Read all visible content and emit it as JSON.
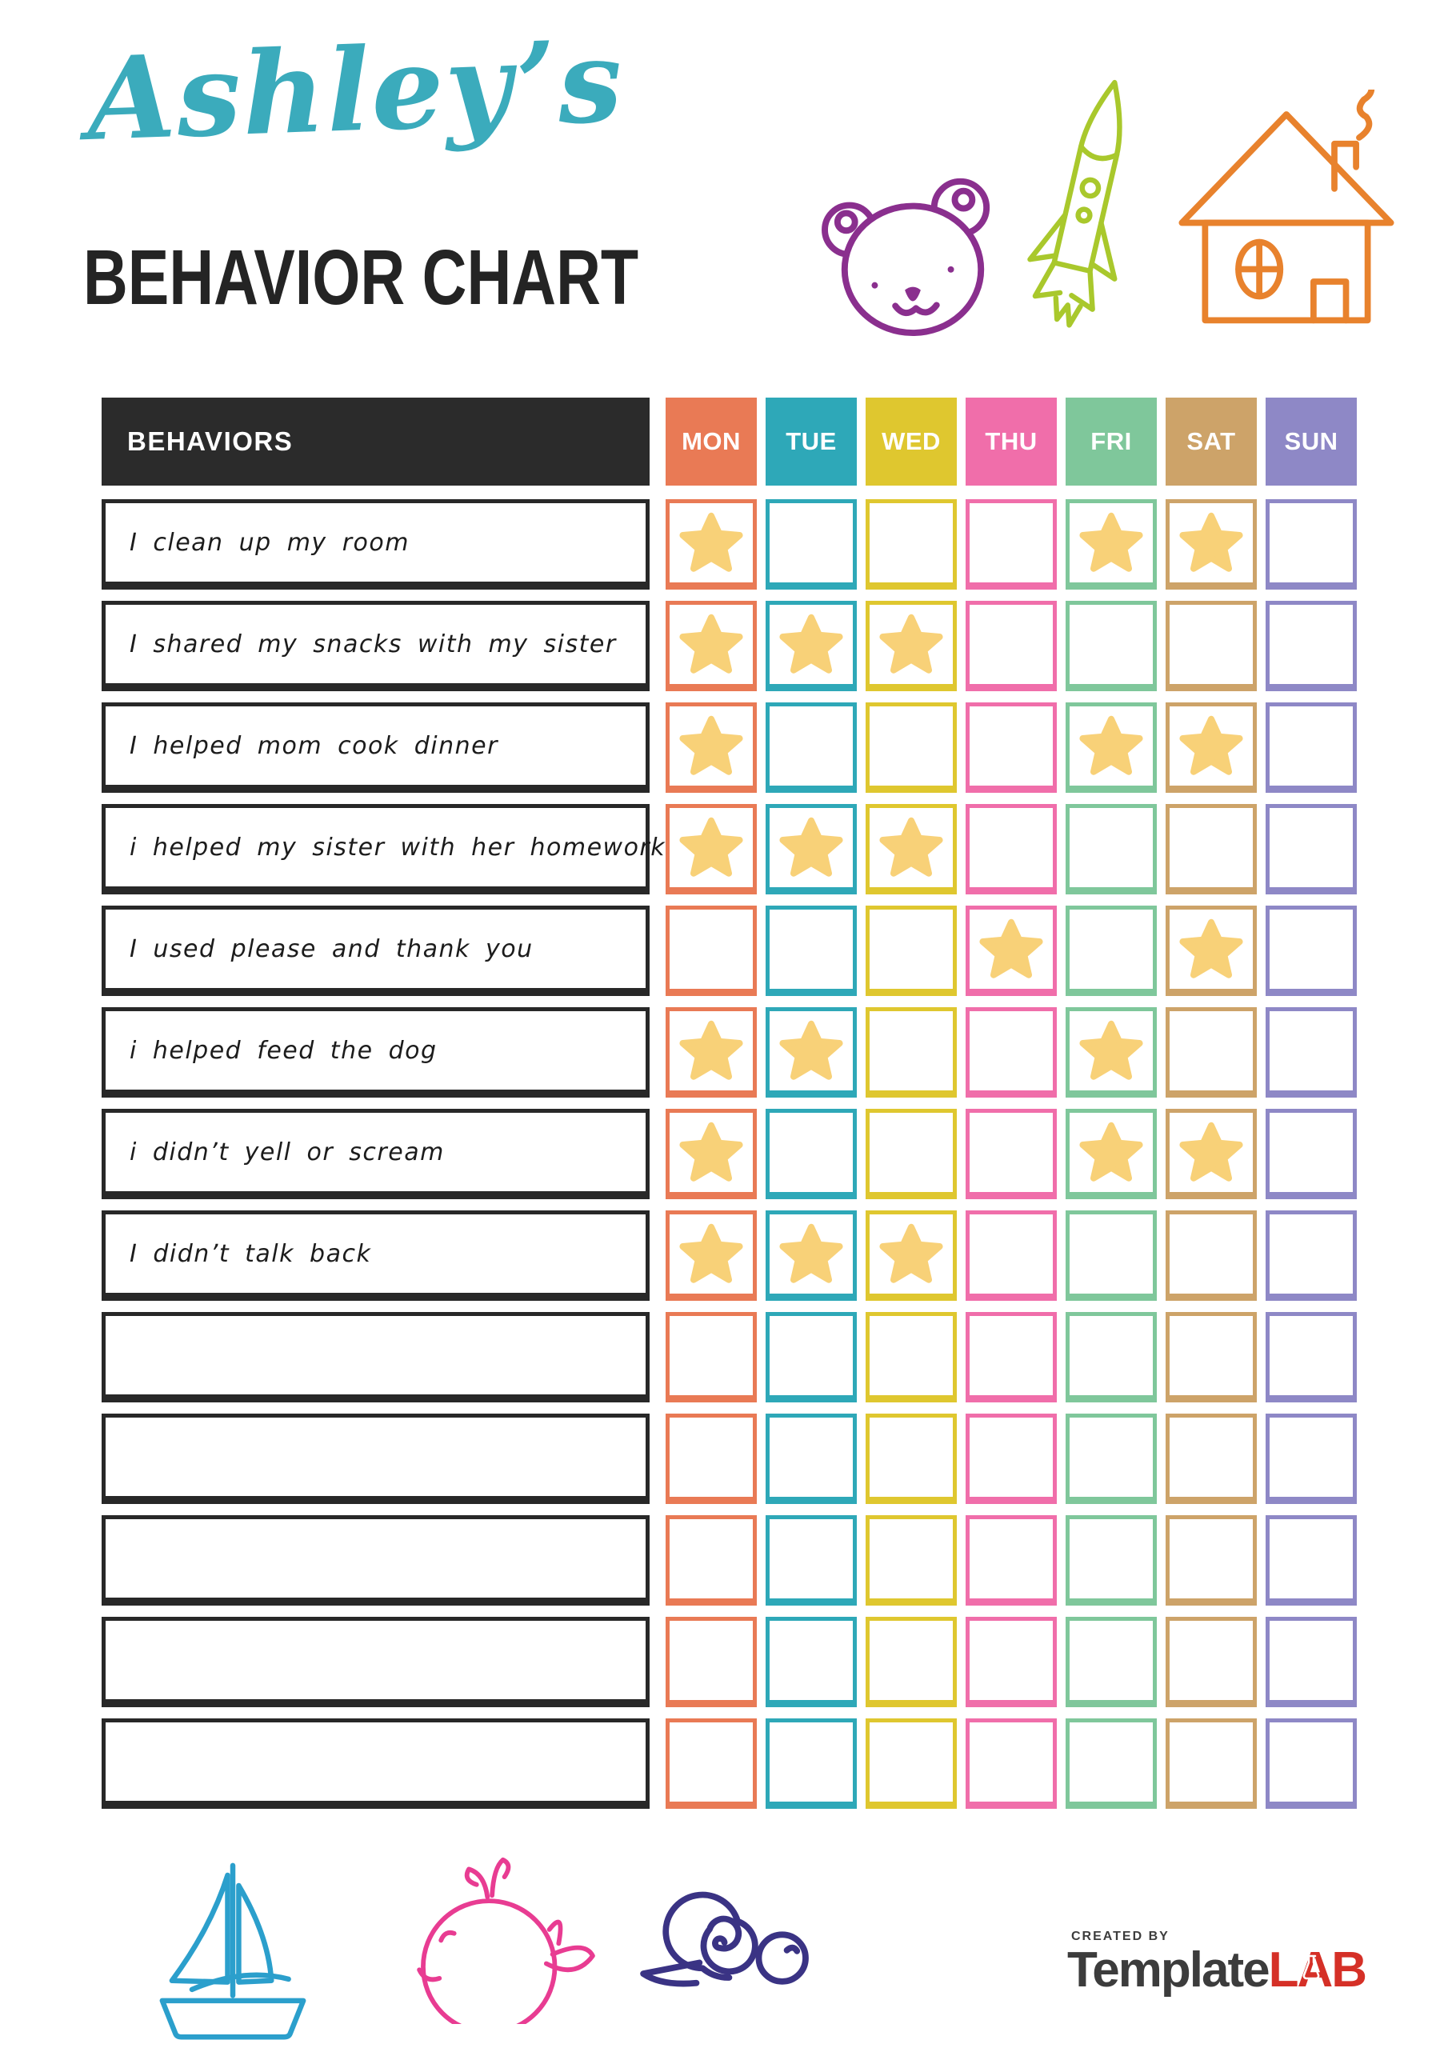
{
  "header": {
    "script_title": "Ashley’s",
    "main_title": "BEHAVIOR CHART"
  },
  "table": {
    "behaviors_header": "BEHAVIORS",
    "header_bg": "#2B2B2B",
    "star_color": "#F8D178",
    "days": [
      {
        "label": "MON",
        "color": "#E97A55"
      },
      {
        "label": "TUE",
        "color": "#2EA8B8"
      },
      {
        "label": "WED",
        "color": "#DFC72F"
      },
      {
        "label": "THU",
        "color": "#F06EAA"
      },
      {
        "label": "FRI",
        "color": "#7FC79B"
      },
      {
        "label": "SAT",
        "color": "#CDA369"
      },
      {
        "label": "SUN",
        "color": "#8E88C6"
      }
    ],
    "rows": [
      {
        "behavior": "I clean up my room",
        "stars": [
          1,
          0,
          0,
          0,
          1,
          1,
          0
        ]
      },
      {
        "behavior": "I shared my snacks with my sister",
        "stars": [
          1,
          1,
          1,
          0,
          0,
          0,
          0
        ]
      },
      {
        "behavior": "I helped mom cook dinner",
        "stars": [
          1,
          0,
          0,
          0,
          1,
          1,
          0
        ]
      },
      {
        "behavior": "i helped my sister with her homework",
        "stars": [
          1,
          1,
          1,
          0,
          0,
          0,
          0
        ]
      },
      {
        "behavior": "I used please and thank you",
        "stars": [
          0,
          0,
          0,
          1,
          0,
          1,
          0
        ]
      },
      {
        "behavior": "i helped feed the dog",
        "stars": [
          1,
          1,
          0,
          0,
          1,
          0,
          0
        ]
      },
      {
        "behavior": "i didn’t yell or scream",
        "stars": [
          1,
          0,
          0,
          0,
          1,
          1,
          0
        ]
      },
      {
        "behavior": "I didn’t talk back",
        "stars": [
          1,
          1,
          1,
          0,
          0,
          0,
          0
        ]
      },
      {
        "behavior": "",
        "stars": [
          0,
          0,
          0,
          0,
          0,
          0,
          0
        ]
      },
      {
        "behavior": "",
        "stars": [
          0,
          0,
          0,
          0,
          0,
          0,
          0
        ]
      },
      {
        "behavior": "",
        "stars": [
          0,
          0,
          0,
          0,
          0,
          0,
          0
        ]
      },
      {
        "behavior": "",
        "stars": [
          0,
          0,
          0,
          0,
          0,
          0,
          0
        ]
      },
      {
        "behavior": "",
        "stars": [
          0,
          0,
          0,
          0,
          0,
          0,
          0
        ]
      }
    ]
  },
  "decorations": {
    "colors": {
      "title_script": "#3BABBC",
      "bear": "#8A2F8E",
      "rocket": "#A9C82C",
      "house": "#E8822D",
      "sailboat": "#2B9FCC",
      "whale": "#E83C92",
      "snail": "#3A3384"
    }
  },
  "footer": {
    "created_by": "CREATED BY",
    "brand_dark": "Template",
    "brand_red": "LAB"
  }
}
